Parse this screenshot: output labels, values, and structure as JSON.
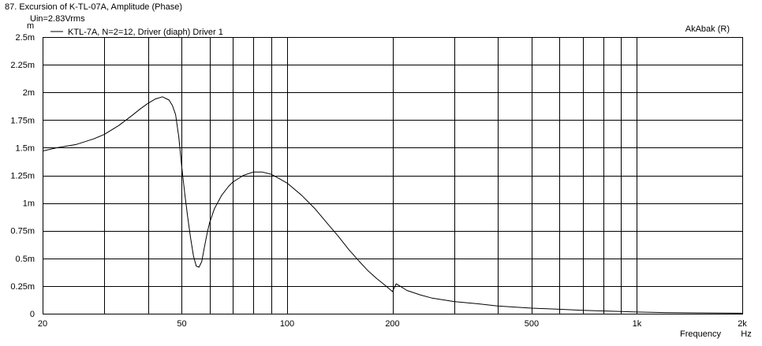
{
  "chart_data": {
    "type": "line",
    "title": "87. Excursion of K-TL-07A, Amplitude (Phase)",
    "subtitle": "Uin=2.83Vrms",
    "brand": "AkAbak (R)",
    "y_unit": "m",
    "x_unit": "Hz",
    "xlabel": "Frequency",
    "x_scale": "log",
    "xlim": [
      20,
      2000
    ],
    "ylim": [
      0,
      2.5
    ],
    "grid": true,
    "legend_position": "top-left",
    "line_color": "#000000",
    "grid_color": "#000000",
    "x_ticks": [
      {
        "value": 20,
        "label": "20"
      },
      {
        "value": 50,
        "label": "50"
      },
      {
        "value": 100,
        "label": "100"
      },
      {
        "value": 200,
        "label": "200"
      },
      {
        "value": 500,
        "label": "500"
      },
      {
        "value": 1000,
        "label": "1k"
      },
      {
        "value": 2000,
        "label": "2k"
      }
    ],
    "x_gridlines": [
      20,
      30,
      40,
      50,
      60,
      70,
      80,
      90,
      100,
      200,
      300,
      400,
      500,
      600,
      700,
      800,
      900,
      1000,
      2000
    ],
    "y_ticks": [
      {
        "value": 0,
        "label": "0"
      },
      {
        "value": 0.25,
        "label": "0.25m"
      },
      {
        "value": 0.5,
        "label": "0.5m"
      },
      {
        "value": 0.75,
        "label": "0.75m"
      },
      {
        "value": 1.0,
        "label": "1m"
      },
      {
        "value": 1.25,
        "label": "1.25m"
      },
      {
        "value": 1.5,
        "label": "1.5m"
      },
      {
        "value": 1.75,
        "label": "1.75m"
      },
      {
        "value": 2.0,
        "label": "2m"
      },
      {
        "value": 2.25,
        "label": "2.25m"
      },
      {
        "value": 2.5,
        "label": "2.5m"
      }
    ],
    "series": [
      {
        "name": "KTL-7A, N=2=12, Driver (diaph) Driver 1",
        "x": [
          20,
          22,
          25,
          28,
          30,
          33,
          36,
          38,
          40,
          42,
          44,
          46,
          47,
          48,
          49,
          50,
          51,
          52,
          53,
          54,
          55,
          56,
          57,
          58,
          59,
          60,
          62,
          65,
          68,
          70,
          75,
          80,
          85,
          90,
          95,
          100,
          110,
          120,
          130,
          140,
          150,
          160,
          170,
          180,
          190,
          200,
          205,
          210,
          220,
          240,
          260,
          300,
          350,
          400,
          500,
          600,
          700,
          800,
          900,
          1000,
          1200,
          1500,
          2000
        ],
        "y": [
          1.47,
          1.5,
          1.53,
          1.58,
          1.62,
          1.7,
          1.79,
          1.85,
          1.9,
          1.94,
          1.96,
          1.93,
          1.88,
          1.8,
          1.6,
          1.32,
          1.08,
          0.87,
          0.68,
          0.52,
          0.43,
          0.42,
          0.47,
          0.6,
          0.72,
          0.82,
          0.95,
          1.07,
          1.15,
          1.19,
          1.25,
          1.28,
          1.28,
          1.26,
          1.22,
          1.18,
          1.07,
          0.95,
          0.82,
          0.7,
          0.58,
          0.48,
          0.39,
          0.32,
          0.26,
          0.2,
          0.27,
          0.25,
          0.21,
          0.17,
          0.14,
          0.11,
          0.09,
          0.07,
          0.05,
          0.04,
          0.03,
          0.025,
          0.02,
          0.015,
          0.01,
          0.007,
          0.004
        ]
      }
    ]
  }
}
